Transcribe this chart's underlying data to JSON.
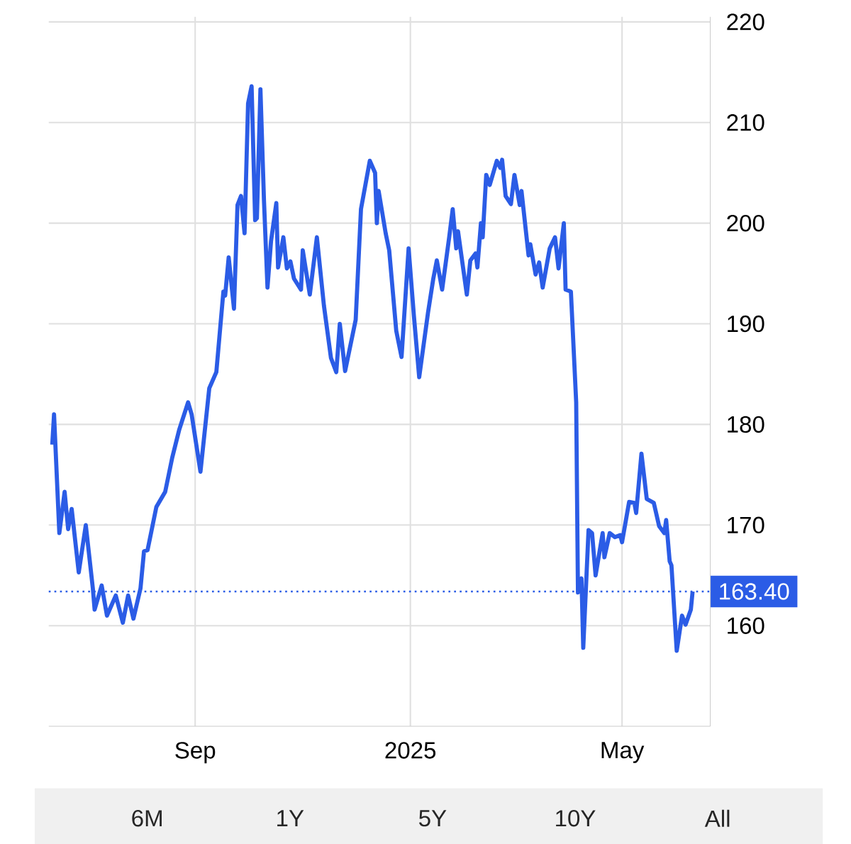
{
  "chart_data": {
    "type": "line",
    "color": "#2b5ce6",
    "x": [
      "2024-06-12",
      "2024-06-13",
      "2024-06-16",
      "2024-06-19",
      "2024-06-21",
      "2024-06-23",
      "2024-06-27",
      "2024-07-01",
      "2024-07-05",
      "2024-07-06",
      "2024-07-10",
      "2024-07-13",
      "2024-07-18",
      "2024-07-22",
      "2024-07-25",
      "2024-07-28",
      "2024-08-01",
      "2024-08-03",
      "2024-08-05",
      "2024-08-10",
      "2024-08-15",
      "2024-08-19",
      "2024-08-23",
      "2024-08-28",
      "2024-08-30",
      "2024-09-04",
      "2024-09-09",
      "2024-09-13",
      "2024-09-17",
      "2024-09-18",
      "2024-09-20",
      "2024-09-23",
      "2024-09-25",
      "2024-09-27",
      "2024-09-29",
      "2024-10-01",
      "2024-10-03",
      "2024-10-05",
      "2024-10-06",
      "2024-10-08",
      "2024-10-10",
      "2024-10-12",
      "2024-10-14",
      "2024-10-17",
      "2024-10-18",
      "2024-10-21",
      "2024-10-23",
      "2024-10-25",
      "2024-10-27",
      "2024-10-31",
      "2024-11-01",
      "2024-11-05",
      "2024-11-09",
      "2024-11-13",
      "2024-11-17",
      "2024-11-20",
      "2024-11-22",
      "2024-11-25",
      "2024-12-01",
      "2024-12-04",
      "2024-12-09",
      "2024-12-12",
      "2024-12-13",
      "2024-12-14",
      "2024-12-18",
      "2024-12-20",
      "2024-12-24",
      "2024-12-27",
      "2024-12-31",
      "2025-01-03",
      "2025-01-06",
      "2025-01-11",
      "2025-01-14",
      "2025-01-16",
      "2025-01-19",
      "2025-01-23",
      "2025-01-25",
      "2025-01-27",
      "2025-01-28",
      "2025-02-02",
      "2025-02-04",
      "2025-02-07",
      "2025-02-08",
      "2025-02-10",
      "2025-02-11",
      "2025-02-13",
      "2025-02-15",
      "2025-02-19",
      "2025-02-21",
      "2025-02-22",
      "2025-02-24",
      "2025-02-27",
      "2025-03-01",
      "2025-03-04",
      "2025-03-05",
      "2025-03-09",
      "2025-03-10",
      "2025-03-13",
      "2025-03-15",
      "2025-03-17",
      "2025-03-21",
      "2025-03-24",
      "2025-03-26",
      "2025-03-29",
      "2025-03-30",
      "2025-04-02",
      "2025-04-05",
      "2025-04-06",
      "2025-04-08",
      "2025-04-09",
      "2025-04-12",
      "2025-04-14",
      "2025-04-16",
      "2025-04-20",
      "2025-04-21",
      "2025-04-24",
      "2025-04-27",
      "2025-04-30",
      "2025-05-01",
      "2025-05-05",
      "2025-05-08",
      "2025-05-09",
      "2025-05-12",
      "2025-05-15",
      "2025-05-19",
      "2025-05-22",
      "2025-05-25",
      "2025-05-26",
      "2025-05-28",
      "2025-05-29",
      "2025-06-01",
      "2025-06-04",
      "2025-06-06",
      "2025-06-09",
      "2025-06-10"
    ],
    "values": [
      178,
      181,
      169.2,
      173.3,
      169.6,
      171.6,
      165.3,
      170,
      163.7,
      161.6,
      164,
      161,
      163,
      160.3,
      163,
      160.7,
      163.7,
      167.4,
      167.5,
      171.8,
      173.3,
      176.7,
      179.5,
      182.2,
      181,
      175.3,
      183.6,
      185.2,
      193.2,
      192.8,
      196.6,
      191.5,
      201.8,
      202.7,
      199,
      211.9,
      213.6,
      200.3,
      200.5,
      213.3,
      202.3,
      193.6,
      198.2,
      202,
      195.6,
      198.6,
      195.5,
      196.2,
      194.5,
      193.4,
      197.3,
      192.9,
      198.6,
      191.8,
      186.6,
      185.2,
      190,
      185.3,
      190.4,
      201.4,
      206.2,
      205,
      200,
      203.2,
      199,
      197.3,
      189.3,
      186.7,
      197.5,
      190.8,
      184.7,
      191.1,
      194.5,
      196.3,
      193.4,
      198.6,
      201.4,
      197.5,
      199.2,
      192.9,
      196.3,
      197,
      195.6,
      200,
      198.6,
      204.8,
      203.8,
      206.2,
      205.5,
      206.3,
      202.7,
      201.9,
      204.8,
      201.8,
      203.2,
      196.8,
      197.9,
      194.9,
      196.1,
      193.6,
      197.5,
      198.6,
      195.5,
      200,
      193.4,
      193.2,
      182.2,
      163.3,
      164.7,
      157.8,
      169.5,
      169.2,
      165,
      169.2,
      166.8,
      169.2,
      168.8,
      169,
      168.3,
      172.3,
      172.2,
      171.2,
      177.1,
      172.6,
      172.2,
      169.9,
      169.2,
      170.5,
      166.4,
      166,
      157.5,
      161,
      160.1,
      161.6,
      163.4
    ],
    "xlim": [
      "2024-06-10",
      "2025-06-20"
    ],
    "xticks": [
      {
        "value": "2024-09-01",
        "label": "Sep"
      },
      {
        "value": "2025-01-01",
        "label": "2025"
      },
      {
        "value": "2025-05-01",
        "label": "May"
      }
    ],
    "ylim": [
      150,
      220.5
    ],
    "yticks": [
      160,
      170,
      180,
      190,
      200,
      210,
      220
    ],
    "grid": true,
    "ref_lines": [
      {
        "axis": "y",
        "value": 163.4,
        "label": "163.40",
        "color": "#2b5ce6",
        "line_style": "dotted"
      }
    ],
    "annotations": [
      "6M",
      "1Y",
      "5Y",
      "10Y",
      "All"
    ]
  }
}
